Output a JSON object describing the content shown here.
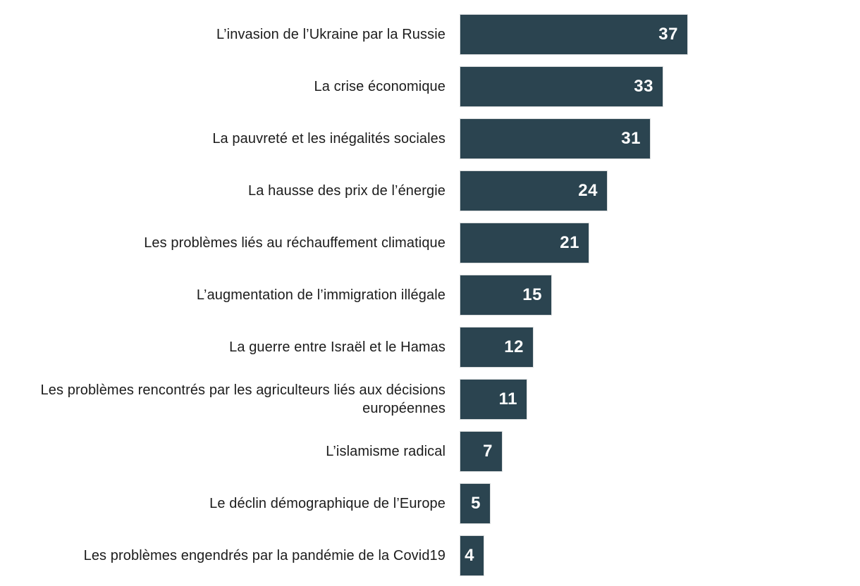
{
  "chart_data": {
    "type": "bar",
    "orientation": "horizontal",
    "title": "",
    "xlabel": "",
    "ylabel": "",
    "xlim": [
      0,
      40
    ],
    "grid": false,
    "legend": false,
    "bar_color": "#2b4450",
    "value_label_color": "#ffffff",
    "category_label_color": "#1c1c1c",
    "background_color": "#ffffff",
    "categories": [
      "L’invasion de l’Ukraine par la Russie",
      "La crise économique",
      "La pauvreté et les inégalités sociales",
      "La hausse des prix de l’énergie",
      "Les problèmes liés au réchauffement climatique",
      "L’augmentation de l’immigration illégale",
      "La guerre entre Israël et le Hamas",
      "Les problèmes rencontrés par les agriculteurs liés aux décisions européennes",
      "L’islamisme radical",
      "Le déclin démographique de l’Europe",
      "Les problèmes engendrés par la pandémie de la Covid19"
    ],
    "values": [
      37,
      33,
      31,
      24,
      21,
      15,
      12,
      11,
      7,
      5,
      4
    ]
  }
}
